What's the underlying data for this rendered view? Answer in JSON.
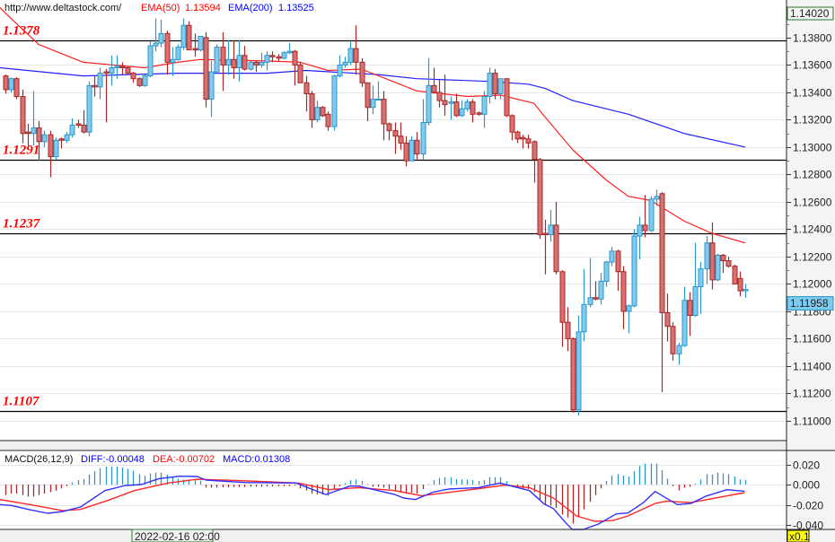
{
  "header": {
    "url": "http://www.deltastock.com/",
    "ema50_label": "EMA(50)",
    "ema50_value": "1.13594",
    "ema200_label": "EMA(200)",
    "ema200_value": "1.13525"
  },
  "macd_header": {
    "title": "MACD(26,12,9)",
    "diff": "DIFF:-0.00048",
    "dea": "DEA:-0.00702",
    "macd": "MACD:0.01308"
  },
  "price_axis": {
    "top_value": "1.14020",
    "current_price": "1.11958",
    "ticks": [
      "1.13800",
      "1.13600",
      "1.13400",
      "1.13200",
      "1.13000",
      "1.12800",
      "1.12600",
      "1.12400",
      "1.12200",
      "1.12000",
      "1.11800",
      "1.11600",
      "1.11400",
      "1.11200",
      "1.11000"
    ]
  },
  "macd_axis": {
    "ticks": [
      "0.020",
      "0.000",
      "-0.020",
      "-0.040"
    ],
    "scale_badge": "x0.1"
  },
  "time_cursor": "2022-02-16 02:00",
  "levels": [
    {
      "label": "1.1378",
      "value": 1.1378
    },
    {
      "label": "1.1291",
      "value": 1.1291
    },
    {
      "label": "1.1237",
      "value": 1.1237
    },
    {
      "label": "1.1107",
      "value": 1.1107
    }
  ],
  "colors": {
    "up_fill": "#7fcbef",
    "up_stroke": "#2f96c8",
    "down_fill": "#d77070",
    "down_stroke": "#a82828",
    "ema50": "#ff2020",
    "ema200": "#2020ff",
    "diff": "#3030ff",
    "dea": "#ff2828",
    "level_label": "#ff0000"
  },
  "chart_data": {
    "type": "candlestick",
    "ylim": [
      1.10862,
      1.14075
    ],
    "candles": [
      [
        1.1352,
        1.1353,
        1.1339,
        1.1342
      ],
      [
        1.1342,
        1.1351,
        1.134,
        1.135
      ],
      [
        1.135,
        1.1351,
        1.1335,
        1.1337
      ],
      [
        1.1337,
        1.1342,
        1.1303,
        1.131
      ],
      [
        1.1311,
        1.1317,
        1.1301,
        1.131
      ],
      [
        1.131,
        1.1341,
        1.1301,
        1.1314
      ],
      [
        1.1314,
        1.1319,
        1.129,
        1.1304
      ],
      [
        1.1304,
        1.1312,
        1.13,
        1.1309
      ],
      [
        1.1309,
        1.1312,
        1.1278,
        1.1293
      ],
      [
        1.1293,
        1.1307,
        1.1291,
        1.1305
      ],
      [
        1.1306,
        1.1307,
        1.1299,
        1.1305
      ],
      [
        1.1305,
        1.1311,
        1.1303,
        1.1309
      ],
      [
        1.1309,
        1.1321,
        1.1307,
        1.1316
      ],
      [
        1.1317,
        1.132,
        1.1314,
        1.1316
      ],
      [
        1.1316,
        1.1327,
        1.131,
        1.1311
      ],
      [
        1.1311,
        1.1348,
        1.1308,
        1.1345
      ],
      [
        1.1345,
        1.1352,
        1.1337,
        1.1344
      ],
      [
        1.1344,
        1.1358,
        1.1335,
        1.1354
      ],
      [
        1.1355,
        1.1357,
        1.1318,
        1.1354
      ],
      [
        1.1354,
        1.1367,
        1.1345,
        1.1358
      ],
      [
        1.1358,
        1.1367,
        1.135,
        1.1359
      ],
      [
        1.1359,
        1.1362,
        1.1353,
        1.1358
      ],
      [
        1.1358,
        1.1359,
        1.1353,
        1.1354
      ],
      [
        1.1354,
        1.1355,
        1.1347,
        1.135
      ],
      [
        1.135,
        1.1351,
        1.1344,
        1.1345
      ],
      [
        1.1345,
        1.1353,
        1.1344,
        1.1352
      ],
      [
        1.1352,
        1.1377,
        1.1351,
        1.1374
      ],
      [
        1.1374,
        1.1394,
        1.137,
        1.1376
      ],
      [
        1.1376,
        1.1393,
        1.1373,
        1.1383
      ],
      [
        1.1383,
        1.1385,
        1.1353,
        1.1362
      ],
      [
        1.1362,
        1.1373,
        1.1352,
        1.1364
      ],
      [
        1.1364,
        1.1375,
        1.1363,
        1.1373
      ],
      [
        1.1373,
        1.1394,
        1.1371,
        1.1389
      ],
      [
        1.1389,
        1.1392,
        1.1371,
        1.1371
      ],
      [
        1.1372,
        1.1383,
        1.1366,
        1.1371
      ],
      [
        1.1371,
        1.1381,
        1.137,
        1.1381
      ],
      [
        1.138,
        1.1384,
        1.1329,
        1.1335
      ],
      [
        1.1335,
        1.1363,
        1.1322,
        1.1355
      ],
      [
        1.1355,
        1.1375,
        1.1354,
        1.1373
      ],
      [
        1.1373,
        1.1384,
        1.1341,
        1.136
      ],
      [
        1.136,
        1.1378,
        1.1353,
        1.1364
      ],
      [
        1.1364,
        1.1378,
        1.135,
        1.1358
      ],
      [
        1.1358,
        1.1378,
        1.1348,
        1.1367
      ],
      [
        1.1367,
        1.1374,
        1.1356,
        1.1357
      ],
      [
        1.1357,
        1.1363,
        1.1356,
        1.1362
      ],
      [
        1.1362,
        1.1363,
        1.1355,
        1.136
      ],
      [
        1.136,
        1.1369,
        1.1358,
        1.1362
      ],
      [
        1.1362,
        1.137,
        1.1356,
        1.1367
      ],
      [
        1.1367,
        1.137,
        1.1362,
        1.1366
      ],
      [
        1.1366,
        1.1368,
        1.1363,
        1.1365
      ],
      [
        1.1365,
        1.137,
        1.1364,
        1.1369
      ],
      [
        1.1369,
        1.1376,
        1.1368,
        1.137
      ],
      [
        1.137,
        1.1371,
        1.1345,
        1.136
      ],
      [
        1.136,
        1.1362,
        1.1347,
        1.1347
      ],
      [
        1.1347,
        1.1352,
        1.1326,
        1.1339
      ],
      [
        1.1339,
        1.1341,
        1.1314,
        1.132
      ],
      [
        1.132,
        1.1334,
        1.1318,
        1.1329
      ],
      [
        1.1329,
        1.133,
        1.1322,
        1.1323
      ],
      [
        1.1324,
        1.1326,
        1.1312,
        1.1315
      ],
      [
        1.1315,
        1.1353,
        1.1312,
        1.1352
      ],
      [
        1.1352,
        1.1367,
        1.1351,
        1.136
      ],
      [
        1.136,
        1.1366,
        1.1358,
        1.1362
      ],
      [
        1.1362,
        1.1377,
        1.136,
        1.1372
      ],
      [
        1.1372,
        1.1389,
        1.1353,
        1.1362
      ],
      [
        1.1362,
        1.1365,
        1.1344,
        1.1347
      ],
      [
        1.1347,
        1.1347,
        1.1319,
        1.1329
      ],
      [
        1.1329,
        1.1345,
        1.1324,
        1.1335
      ],
      [
        1.1335,
        1.1348,
        1.1334,
        1.1335
      ],
      [
        1.1335,
        1.1341,
        1.1305,
        1.1317
      ],
      [
        1.1317,
        1.1318,
        1.1305,
        1.1312
      ],
      [
        1.1312,
        1.1318,
        1.1295,
        1.1308
      ],
      [
        1.1308,
        1.1318,
        1.1298,
        1.1303
      ],
      [
        1.1303,
        1.1308,
        1.1286,
        1.129
      ],
      [
        1.129,
        1.1308,
        1.129,
        1.1305
      ],
      [
        1.1305,
        1.1311,
        1.1291,
        1.1295
      ],
      [
        1.1295,
        1.1335,
        1.1291,
        1.1318
      ],
      [
        1.1318,
        1.1365,
        1.1316,
        1.1345
      ],
      [
        1.1345,
        1.1358,
        1.1339,
        1.134
      ],
      [
        1.134,
        1.1349,
        1.1329,
        1.1334
      ],
      [
        1.1334,
        1.1353,
        1.1323,
        1.1331
      ],
      [
        1.1332,
        1.1337,
        1.132,
        1.1333
      ],
      [
        1.1333,
        1.1339,
        1.1322,
        1.1323
      ],
      [
        1.1323,
        1.1334,
        1.1322,
        1.1328
      ],
      [
        1.1328,
        1.1335,
        1.1326,
        1.1333
      ],
      [
        1.1333,
        1.1335,
        1.1318,
        1.1324
      ],
      [
        1.1325,
        1.1326,
        1.1323,
        1.1324
      ],
      [
        1.1324,
        1.1341,
        1.1314,
        1.1337
      ],
      [
        1.1337,
        1.1358,
        1.1332,
        1.1354
      ],
      [
        1.1354,
        1.1357,
        1.1335,
        1.1339
      ],
      [
        1.1339,
        1.135,
        1.1335,
        1.135
      ],
      [
        1.135,
        1.135,
        1.1322,
        1.1323
      ],
      [
        1.1323,
        1.1324,
        1.1305,
        1.1311
      ],
      [
        1.1311,
        1.1312,
        1.1303,
        1.1306
      ],
      [
        1.1307,
        1.1309,
        1.1299,
        1.1306
      ],
      [
        1.1306,
        1.1309,
        1.1299,
        1.1303
      ],
      [
        1.1304,
        1.1305,
        1.1274,
        1.1291
      ],
      [
        1.1291,
        1.1292,
        1.1233,
        1.1236
      ],
      [
        1.1237,
        1.1247,
        1.1207,
        1.1236
      ],
      [
        1.1236,
        1.1254,
        1.1231,
        1.1243
      ],
      [
        1.1243,
        1.126,
        1.1207,
        1.1209
      ],
      [
        1.1209,
        1.121,
        1.1154,
        1.1172
      ],
      [
        1.1172,
        1.1183,
        1.1151,
        1.116
      ],
      [
        1.116,
        1.1161,
        1.1106,
        1.1108
      ],
      [
        1.1108,
        1.1177,
        1.1104,
        1.1165
      ],
      [
        1.1165,
        1.1211,
        1.1158,
        1.1185
      ],
      [
        1.1185,
        1.1219,
        1.1183,
        1.119
      ],
      [
        1.119,
        1.1202,
        1.1188,
        1.1189
      ],
      [
        1.1189,
        1.1208,
        1.1185,
        1.1202
      ],
      [
        1.1202,
        1.1217,
        1.1198,
        1.1216
      ],
      [
        1.1216,
        1.1227,
        1.1213,
        1.1224
      ],
      [
        1.1224,
        1.1225,
        1.1195,
        1.1209
      ],
      [
        1.1209,
        1.1213,
        1.1167,
        1.118
      ],
      [
        1.118,
        1.1185,
        1.1164,
        1.1184
      ],
      [
        1.1184,
        1.124,
        1.1183,
        1.1235
      ],
      [
        1.1235,
        1.1249,
        1.1218,
        1.1243
      ],
      [
        1.1243,
        1.1265,
        1.1234,
        1.1239
      ],
      [
        1.1239,
        1.1264,
        1.1238,
        1.1262
      ],
      [
        1.1262,
        1.1269,
        1.1257,
        1.1264
      ],
      [
        1.1266,
        1.1267,
        1.1121,
        1.1179
      ],
      [
        1.1179,
        1.1193,
        1.1158,
        1.1169
      ],
      [
        1.1169,
        1.1172,
        1.1144,
        1.1149
      ],
      [
        1.1149,
        1.1157,
        1.1141,
        1.1155
      ],
      [
        1.1155,
        1.1198,
        1.1154,
        1.1188
      ],
      [
        1.1188,
        1.1194,
        1.1162,
        1.1177
      ],
      [
        1.1177,
        1.123,
        1.1176,
        1.1198
      ],
      [
        1.1198,
        1.1216,
        1.1178,
        1.1211
      ],
      [
        1.1211,
        1.1235,
        1.12,
        1.123
      ],
      [
        1.123,
        1.1245,
        1.1196,
        1.1203
      ],
      [
        1.1203,
        1.1222,
        1.1202,
        1.1221
      ],
      [
        1.1221,
        1.1222,
        1.1208,
        1.1217
      ],
      [
        1.1217,
        1.122,
        1.1212,
        1.1213
      ],
      [
        1.1213,
        1.1214,
        1.12,
        1.12
      ],
      [
        1.1204,
        1.1209,
        1.1191,
        1.1195
      ],
      [
        1.1195,
        1.12,
        1.119,
        1.1196
      ]
    ],
    "ema50": [
      [
        -1,
        1.1402
      ],
      [
        1,
        1.1394
      ],
      [
        6,
        1.1375
      ],
      [
        14,
        1.1362
      ],
      [
        25,
        1.1358
      ],
      [
        31,
        1.1362
      ],
      [
        35,
        1.1364
      ],
      [
        47,
        1.1363
      ],
      [
        53,
        1.1362
      ],
      [
        58,
        1.1356
      ],
      [
        64,
        1.1357
      ],
      [
        74,
        1.1341
      ],
      [
        83,
        1.1337
      ],
      [
        89,
        1.1338
      ],
      [
        95,
        1.1332
      ],
      [
        97,
        1.1322
      ],
      [
        102,
        1.1298
      ],
      [
        108,
        1.1276
      ],
      [
        112,
        1.1264
      ],
      [
        116,
        1.1261
      ],
      [
        122,
        1.1246
      ],
      [
        127,
        1.1237
      ],
      [
        133,
        1.123
      ]
    ],
    "ema200": [
      [
        -1,
        1.1358
      ],
      [
        14,
        1.1352
      ],
      [
        31,
        1.1354
      ],
      [
        47,
        1.1354
      ],
      [
        54,
        1.1356
      ],
      [
        67,
        1.1353
      ],
      [
        74,
        1.135
      ],
      [
        87,
        1.1348
      ],
      [
        94,
        1.1346
      ],
      [
        97,
        1.1343
      ],
      [
        102,
        1.1334
      ],
      [
        112,
        1.1324
      ],
      [
        122,
        1.131
      ],
      [
        133,
        1.13
      ]
    ],
    "macd": {
      "ylim": [
        -0.0444,
        0.0338
      ],
      "hist": [
        -0.0104,
        -0.0089,
        -0.0089,
        -0.0104,
        -0.0118,
        -0.0118,
        -0.0104,
        -0.0089,
        -0.0074,
        -0.0059,
        -0.0038,
        -0.0015,
        0.0021,
        0.0044,
        0.0056,
        0.0098,
        0.0133,
        0.0163,
        0.0178,
        0.0178,
        0.0178,
        0.0169,
        0.0157,
        0.0139,
        0.0104,
        0.0089,
        0.011,
        0.0118,
        0.0118,
        0.0098,
        0.0074,
        0.0059,
        0.005,
        0.005,
        0.0044,
        0.0038,
        -0.003,
        -0.003,
        -0.003,
        -0.0027,
        -0.0027,
        -0.0024,
        -0.0024,
        -0.0024,
        -0.0021,
        -0.0021,
        -0.0021,
        -0.0018,
        -0.0018,
        -0.0015,
        -0.0015,
        -0.0015,
        -0.0009,
        -0.0038,
        -0.0059,
        -0.0089,
        -0.0098,
        -0.0098,
        -0.011,
        -0.0044,
        -0.0015,
        0.0015,
        0.0044,
        0.005,
        0.0038,
        0.0005,
        -0.0021,
        -0.0021,
        -0.003,
        -0.0044,
        -0.0068,
        -0.008,
        -0.0089,
        -0.008,
        -0.0089,
        -0.0044,
        0.0006,
        0.0044,
        0.0065,
        0.0074,
        0.0074,
        0.0053,
        0.0053,
        0.005,
        0.0044,
        0.0036,
        0.0044,
        0.0074,
        0.0074,
        0.0074,
        0.0036,
        -0.0003,
        -0.0015,
        -0.0038,
        -0.0044,
        -0.0074,
        -0.0157,
        -0.0198,
        -0.0207,
        -0.0231,
        -0.0296,
        -0.0326,
        -0.0385,
        -0.0326,
        -0.0246,
        -0.0169,
        -0.0104,
        -0.0038,
        0.0036,
        0.0089,
        0.0104,
        0.0089,
        0.008,
        0.0133,
        0.0186,
        0.0207,
        0.0207,
        0.0207,
        0.0142,
        0.0059,
        -0.0015,
        -0.0059,
        -0.003,
        -0.0021,
        0.0009,
        0.005,
        0.0104,
        0.0098,
        0.0118,
        0.0112,
        0.0104,
        0.008,
        0.005,
        0.0044
      ],
      "diff": [
        [
          -1,
          -0.0198
        ],
        [
          1.1,
          -0.0207
        ],
        [
          4.4,
          -0.0249
        ],
        [
          7.6,
          -0.0284
        ],
        [
          10.3,
          -0.0267
        ],
        [
          13.5,
          -0.0222
        ],
        [
          17.9,
          -0.0059
        ],
        [
          21.6,
          -0.0009
        ],
        [
          24.4,
          0.0
        ],
        [
          27.6,
          0.0059
        ],
        [
          31.3,
          0.0083
        ],
        [
          34.5,
          0.008
        ],
        [
          36.1,
          0.0044
        ],
        [
          43.1,
          0.0021
        ],
        [
          52.3,
          0.0015
        ],
        [
          55,
          -0.0044
        ],
        [
          57.6,
          -0.0098
        ],
        [
          61.9,
          -0.0015
        ],
        [
          63.5,
          -0.0015
        ],
        [
          70,
          -0.0098
        ],
        [
          71.6,
          -0.0133
        ],
        [
          73.7,
          -0.0148
        ],
        [
          76.9,
          -0.0074
        ],
        [
          79.7,
          -0.0044
        ],
        [
          85,
          -0.003
        ],
        [
          88.9,
          0.0015
        ],
        [
          91,
          -0.0015
        ],
        [
          94.2,
          -0.0059
        ],
        [
          96.9,
          -0.0193
        ],
        [
          98.5,
          -0.0237
        ],
        [
          100.6,
          -0.037
        ],
        [
          101.9,
          -0.046
        ],
        [
          103.9,
          -0.0453
        ],
        [
          106.6,
          -0.0391
        ],
        [
          109.8,
          -0.029
        ],
        [
          111.9,
          -0.0281
        ],
        [
          114.7,
          -0.0178
        ],
        [
          116.8,
          -0.0068
        ],
        [
          120.8,
          -0.0198
        ],
        [
          123.2,
          -0.0187
        ],
        [
          126,
          -0.0113
        ],
        [
          129.7,
          -0.005
        ],
        [
          132.9,
          -0.0065
        ]
      ],
      "dea": [
        [
          -1,
          -0.0148
        ],
        [
          4.4,
          -0.0198
        ],
        [
          10.3,
          -0.0258
        ],
        [
          13.5,
          -0.0246
        ],
        [
          18.4,
          -0.0157
        ],
        [
          23.2,
          -0.0059
        ],
        [
          29.2,
          0.0015
        ],
        [
          34.5,
          0.0053
        ],
        [
          42.1,
          0.0039
        ],
        [
          52.7,
          0.0015
        ],
        [
          58.2,
          -0.005
        ],
        [
          63.5,
          -0.003
        ],
        [
          70,
          -0.0059
        ],
        [
          74.8,
          -0.011
        ],
        [
          84.5,
          -0.0044
        ],
        [
          89.8,
          -0.0006
        ],
        [
          94.2,
          -0.003
        ],
        [
          98.5,
          -0.0133
        ],
        [
          102.7,
          -0.0311
        ],
        [
          106,
          -0.0364
        ],
        [
          109.2,
          -0.0356
        ],
        [
          111.9,
          -0.0311
        ],
        [
          116.8,
          -0.0187
        ],
        [
          118.9,
          -0.0163
        ],
        [
          123.2,
          -0.0178
        ],
        [
          132.9,
          -0.008
        ]
      ]
    }
  }
}
